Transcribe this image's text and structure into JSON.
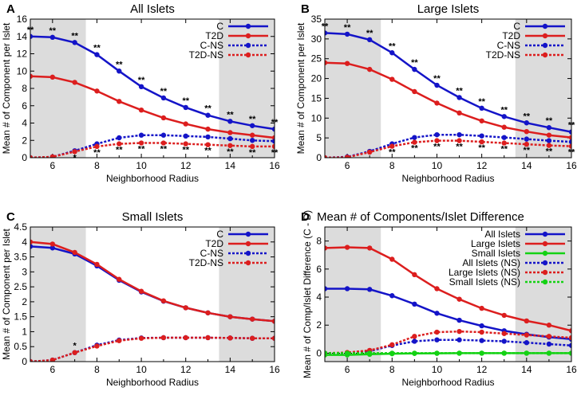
{
  "chart_data": [
    {
      "panel": "A",
      "type": "line",
      "title": "All Islets",
      "xlabel": "Neighborhood Radius",
      "ylabel": "Mean # of Component per Islet",
      "xlim": [
        5,
        16
      ],
      "ylim": [
        0,
        16
      ],
      "xticks": [
        "6",
        "8",
        "10",
        "12",
        "14",
        "16"
      ],
      "yticks": [
        "0",
        "2",
        "4",
        "6",
        "8",
        "10",
        "12",
        "14",
        "16"
      ],
      "shaded": [
        [
          5,
          7.5
        ],
        [
          13.5,
          16
        ]
      ],
      "legend": "top-right",
      "x": [
        5,
        6,
        7,
        8,
        9,
        10,
        11,
        12,
        13,
        14,
        15,
        16
      ],
      "series": [
        {
          "name": "C",
          "color": "#1414c8",
          "dashed": false,
          "values": [
            14.0,
            13.9,
            13.3,
            11.9,
            10.0,
            8.2,
            6.9,
            5.8,
            4.9,
            4.2,
            3.7,
            3.3
          ]
        },
        {
          "name": "T2D",
          "color": "#dc1e1e",
          "dashed": false,
          "values": [
            9.4,
            9.3,
            8.7,
            7.7,
            6.5,
            5.5,
            4.6,
            3.9,
            3.3,
            2.9,
            2.6,
            2.3
          ]
        },
        {
          "name": "C-NS",
          "color": "#1414c8",
          "dashed": true,
          "values": [
            0.0,
            0.1,
            0.8,
            1.6,
            2.3,
            2.6,
            2.6,
            2.5,
            2.4,
            2.2,
            2.0,
            1.9
          ]
        },
        {
          "name": "T2D-NS",
          "color": "#dc1e1e",
          "dashed": true,
          "values": [
            0.0,
            0.1,
            0.7,
            1.3,
            1.6,
            1.7,
            1.7,
            1.6,
            1.5,
            1.4,
            1.3,
            1.3
          ]
        }
      ],
      "annotations": [
        {
          "x": 5,
          "y": 14.0,
          "text": "**",
          "pos": "above"
        },
        {
          "x": 6,
          "y": 13.9,
          "text": "**",
          "pos": "above"
        },
        {
          "x": 7,
          "y": 13.3,
          "text": "**",
          "pos": "above"
        },
        {
          "x": 8,
          "y": 11.9,
          "text": "**",
          "pos": "above"
        },
        {
          "x": 9,
          "y": 10.0,
          "text": "**",
          "pos": "above"
        },
        {
          "x": 10,
          "y": 8.2,
          "text": "**",
          "pos": "above"
        },
        {
          "x": 11,
          "y": 6.9,
          "text": "**",
          "pos": "above"
        },
        {
          "x": 12,
          "y": 5.8,
          "text": "**",
          "pos": "above"
        },
        {
          "x": 13,
          "y": 4.9,
          "text": "**",
          "pos": "above"
        },
        {
          "x": 14,
          "y": 4.2,
          "text": "**",
          "pos": "above"
        },
        {
          "x": 15,
          "y": 3.7,
          "text": "**",
          "pos": "above"
        },
        {
          "x": 16,
          "y": 3.3,
          "text": "**",
          "pos": "above"
        },
        {
          "x": 7,
          "y": 0.7,
          "text": "*",
          "pos": "below"
        },
        {
          "x": 8,
          "y": 1.3,
          "text": "**",
          "pos": "below"
        },
        {
          "x": 9,
          "y": 1.6,
          "text": "**",
          "pos": "below"
        },
        {
          "x": 10,
          "y": 1.7,
          "text": "**",
          "pos": "below"
        },
        {
          "x": 11,
          "y": 1.7,
          "text": "**",
          "pos": "below"
        },
        {
          "x": 12,
          "y": 1.6,
          "text": "**",
          "pos": "below"
        },
        {
          "x": 13,
          "y": 1.5,
          "text": "**",
          "pos": "below"
        },
        {
          "x": 14,
          "y": 1.4,
          "text": "**",
          "pos": "below"
        },
        {
          "x": 15,
          "y": 1.3,
          "text": "**",
          "pos": "below"
        },
        {
          "x": 16,
          "y": 1.3,
          "text": "**",
          "pos": "below"
        }
      ]
    },
    {
      "panel": "B",
      "type": "line",
      "title": "Large Islets",
      "xlabel": "Neighborhood Radius",
      "ylabel": "Mean # of Component per Islet",
      "xlim": [
        5,
        16
      ],
      "ylim": [
        0,
        35
      ],
      "xticks": [
        "6",
        "8",
        "10",
        "12",
        "14",
        "16"
      ],
      "yticks": [
        "0",
        "5",
        "10",
        "15",
        "20",
        "25",
        "30",
        "35"
      ],
      "shaded": [
        [
          5,
          7.5
        ],
        [
          13.5,
          16
        ]
      ],
      "legend": "top-right",
      "x": [
        5,
        6,
        7,
        8,
        9,
        10,
        11,
        12,
        13,
        14,
        15,
        16
      ],
      "series": [
        {
          "name": "C",
          "color": "#1414c8",
          "dashed": false,
          "values": [
            31.5,
            31.2,
            29.8,
            26.5,
            22.3,
            18.3,
            15.2,
            12.5,
            10.4,
            8.8,
            7.6,
            6.5
          ]
        },
        {
          "name": "T2D",
          "color": "#dc1e1e",
          "dashed": false,
          "values": [
            24.0,
            23.8,
            22.3,
            19.8,
            16.7,
            13.8,
            11.3,
            9.3,
            7.7,
            6.6,
            5.7,
            5.1
          ]
        },
        {
          "name": "C-NS",
          "color": "#1414c8",
          "dashed": true,
          "values": [
            0.0,
            0.2,
            1.6,
            3.5,
            5.1,
            5.8,
            5.8,
            5.5,
            5.1,
            4.7,
            4.3,
            4.0
          ]
        },
        {
          "name": "T2D-NS",
          "color": "#dc1e1e",
          "dashed": true,
          "values": [
            0.0,
            0.1,
            1.4,
            2.9,
            3.9,
            4.3,
            4.3,
            4.0,
            3.7,
            3.4,
            3.1,
            2.9
          ]
        }
      ],
      "annotations": [
        {
          "x": 5,
          "y": 31.5,
          "text": "**",
          "pos": "above"
        },
        {
          "x": 6,
          "y": 31.2,
          "text": "**",
          "pos": "above"
        },
        {
          "x": 7,
          "y": 29.8,
          "text": "**",
          "pos": "above"
        },
        {
          "x": 8,
          "y": 26.5,
          "text": "**",
          "pos": "above"
        },
        {
          "x": 9,
          "y": 22.3,
          "text": "**",
          "pos": "above"
        },
        {
          "x": 10,
          "y": 18.3,
          "text": "**",
          "pos": "above"
        },
        {
          "x": 11,
          "y": 15.2,
          "text": "**",
          "pos": "above"
        },
        {
          "x": 12,
          "y": 12.5,
          "text": "**",
          "pos": "above"
        },
        {
          "x": 13,
          "y": 10.4,
          "text": "**",
          "pos": "above"
        },
        {
          "x": 14,
          "y": 8.8,
          "text": "**",
          "pos": "above"
        },
        {
          "x": 15,
          "y": 7.6,
          "text": "**",
          "pos": "above"
        },
        {
          "x": 16,
          "y": 6.5,
          "text": "**",
          "pos": "above"
        },
        {
          "x": 8,
          "y": 2.9,
          "text": "**",
          "pos": "below"
        },
        {
          "x": 9,
          "y": 3.9,
          "text": "**",
          "pos": "below"
        },
        {
          "x": 10,
          "y": 4.3,
          "text": "**",
          "pos": "below"
        },
        {
          "x": 11,
          "y": 4.3,
          "text": "**",
          "pos": "below"
        },
        {
          "x": 12,
          "y": 4.0,
          "text": "**",
          "pos": "below"
        },
        {
          "x": 13,
          "y": 3.7,
          "text": "**",
          "pos": "below"
        },
        {
          "x": 14,
          "y": 3.4,
          "text": "**",
          "pos": "below"
        },
        {
          "x": 15,
          "y": 3.1,
          "text": "**",
          "pos": "below"
        },
        {
          "x": 16,
          "y": 2.9,
          "text": "**",
          "pos": "below"
        }
      ]
    },
    {
      "panel": "C",
      "type": "line",
      "title": "Small Islets",
      "xlabel": "Neighborhood Radius",
      "ylabel": "Mean # of Component per Islet",
      "xlim": [
        5,
        16
      ],
      "ylim": [
        0,
        4.5
      ],
      "xticks": [
        "6",
        "8",
        "10",
        "12",
        "14",
        "16"
      ],
      "yticks": [
        "0",
        "0.5",
        "1",
        "1.5",
        "2",
        "2.5",
        "3",
        "3.5",
        "4",
        "4.5"
      ],
      "shaded": [
        [
          5,
          7.5
        ],
        [
          13.5,
          16
        ]
      ],
      "legend": "top-right",
      "x": [
        5,
        6,
        7,
        8,
        9,
        10,
        11,
        12,
        13,
        14,
        15,
        16
      ],
      "series": [
        {
          "name": "C",
          "color": "#1414c8",
          "dashed": false,
          "values": [
            3.85,
            3.8,
            3.6,
            3.2,
            2.72,
            2.33,
            2.02,
            1.8,
            1.63,
            1.5,
            1.42,
            1.35
          ]
        },
        {
          "name": "T2D",
          "color": "#dc1e1e",
          "dashed": false,
          "values": [
            4.0,
            3.93,
            3.65,
            3.25,
            2.75,
            2.35,
            2.03,
            1.8,
            1.63,
            1.5,
            1.42,
            1.35
          ]
        },
        {
          "name": "C-NS",
          "color": "#1414c8",
          "dashed": true,
          "values": [
            0.0,
            0.05,
            0.3,
            0.55,
            0.72,
            0.79,
            0.8,
            0.8,
            0.8,
            0.79,
            0.78,
            0.78
          ]
        },
        {
          "name": "T2D-NS",
          "color": "#dc1e1e",
          "dashed": true,
          "values": [
            0.0,
            0.05,
            0.3,
            0.52,
            0.7,
            0.78,
            0.8,
            0.8,
            0.8,
            0.79,
            0.78,
            0.78
          ]
        }
      ],
      "annotations": [
        {
          "x": 7,
          "y": 0.3,
          "text": "*",
          "pos": "above"
        }
      ]
    },
    {
      "panel": "D",
      "type": "line",
      "title": "Mean # of Components/Islet Difference",
      "xlabel": "Neighborhood Radius",
      "ylabel": "Mean # of Comp/Islet Difference (C - D)",
      "xlim": [
        5,
        16
      ],
      "ylim": [
        -0.6,
        9
      ],
      "xticks": [
        "6",
        "8",
        "10",
        "12",
        "14",
        "16"
      ],
      "yticks": [
        "0",
        "2",
        "4",
        "6",
        "8"
      ],
      "shaded": [
        [
          5,
          7.5
        ],
        [
          13.5,
          16
        ]
      ],
      "legend": "top-right",
      "x": [
        5,
        6,
        7,
        8,
        9,
        10,
        11,
        12,
        13,
        14,
        15,
        16
      ],
      "series": [
        {
          "name": "All Islets",
          "color": "#1414c8",
          "dashed": false,
          "values": [
            4.6,
            4.6,
            4.55,
            4.1,
            3.5,
            2.85,
            2.35,
            1.95,
            1.6,
            1.35,
            1.15,
            1.0
          ]
        },
        {
          "name": "Large Islets",
          "color": "#dc1e1e",
          "dashed": false,
          "values": [
            7.5,
            7.55,
            7.5,
            6.7,
            5.6,
            4.6,
            3.85,
            3.2,
            2.7,
            2.3,
            2.0,
            1.6
          ]
        },
        {
          "name": "Small Islets",
          "color": "#14d214",
          "dashed": false,
          "values": [
            -0.12,
            -0.12,
            -0.08,
            -0.04,
            -0.02,
            -0.01,
            0.0,
            0.0,
            0.0,
            0.0,
            0.0,
            0.0
          ]
        },
        {
          "name": "All Islets (NS)",
          "color": "#1414c8",
          "dashed": true,
          "values": [
            0.0,
            0.0,
            0.15,
            0.55,
            0.85,
            0.95,
            0.95,
            0.9,
            0.85,
            0.75,
            0.65,
            0.55
          ]
        },
        {
          "name": "Large Islets (NS)",
          "color": "#dc1e1e",
          "dashed": true,
          "values": [
            0.0,
            0.05,
            0.2,
            0.6,
            1.2,
            1.5,
            1.55,
            1.5,
            1.4,
            1.3,
            1.2,
            1.1
          ]
        },
        {
          "name": "Small Islets (NS)",
          "color": "#14d214",
          "dashed": true,
          "values": [
            0.0,
            0.0,
            0.0,
            0.0,
            0.0,
            0.0,
            0.0,
            0.0,
            0.0,
            0.0,
            0.0,
            0.0
          ]
        }
      ],
      "annotations": []
    }
  ]
}
